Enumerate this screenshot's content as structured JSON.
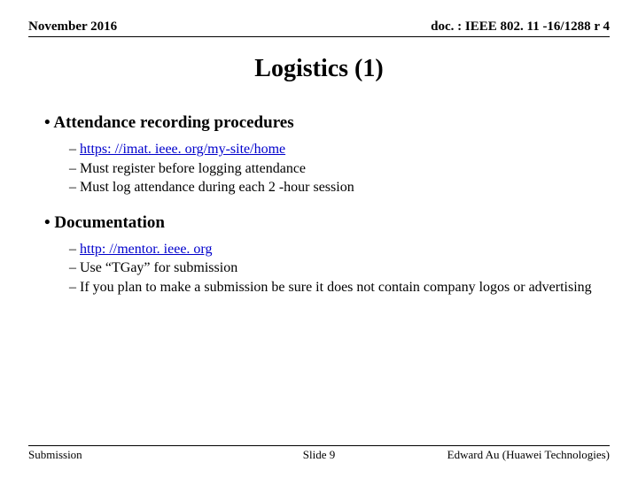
{
  "header": {
    "date": "November 2016",
    "doc": "doc. : IEEE 802. 11 -16/1288 r 4"
  },
  "title": "Logistics (1)",
  "sections": [
    {
      "heading": "Attendance recording procedures",
      "items": [
        {
          "text": "https: //imat. ieee. org/my-site/home",
          "link": true
        },
        {
          "text": "Must register before logging attendance",
          "link": false
        },
        {
          "text": "Must log attendance during each 2 -hour session",
          "link": false
        }
      ]
    },
    {
      "heading": "Documentation",
      "items": [
        {
          "text": "http: //mentor. ieee. org",
          "link": true
        },
        {
          "text": "Use “TGay” for submission",
          "link": false
        },
        {
          "text": "If you plan to make a submission be sure it does not contain company logos or advertising",
          "link": false
        }
      ]
    }
  ],
  "footer": {
    "left": "Submission",
    "center": "Slide 9",
    "right": "Edward Au (Huawei Technologies)"
  }
}
